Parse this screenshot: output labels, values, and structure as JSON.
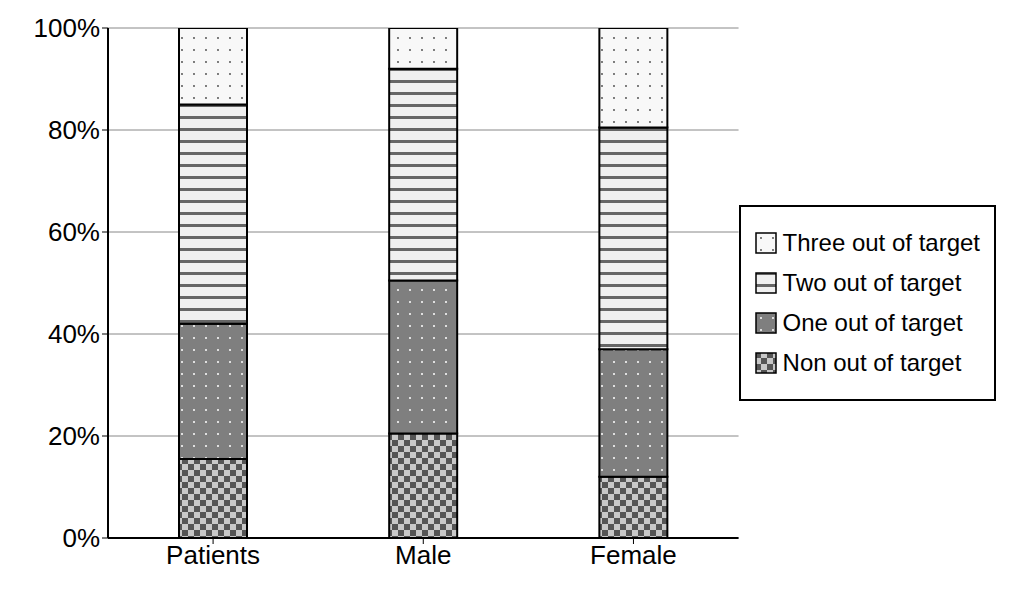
{
  "chart_data": {
    "type": "bar",
    "stacked": true,
    "grid": true,
    "legend": "right",
    "categories": [
      "Patients",
      "Male",
      "Female"
    ],
    "series": [
      {
        "name": "Non out of target",
        "color": "#c8c8c8",
        "values": [
          15.5,
          20.5,
          12
        ]
      },
      {
        "name": "One out of target",
        "color": "#7f7f7f",
        "values": [
          26.5,
          30,
          25
        ]
      },
      {
        "name": "Two out of target",
        "color": "#f0f0f0",
        "values": [
          43,
          41.5,
          43.5
        ]
      },
      {
        "name": "Three out of target",
        "color": "#f8f8f8",
        "values": [
          15,
          8,
          19.5
        ]
      }
    ],
    "ylim": [
      0,
      100
    ],
    "yticks": [
      {
        "value": 0,
        "label": "0%"
      },
      {
        "value": 20,
        "label": "20%"
      },
      {
        "value": 40,
        "label": "40%"
      },
      {
        "value": 60,
        "label": "60%"
      },
      {
        "value": 80,
        "label": "80%"
      },
      {
        "value": 100,
        "label": "100%"
      }
    ]
  }
}
